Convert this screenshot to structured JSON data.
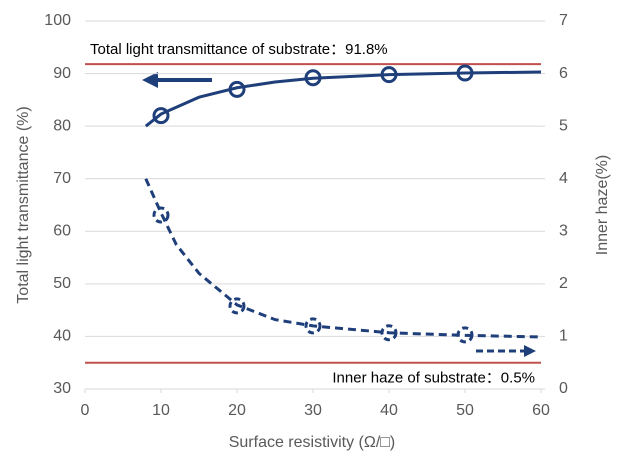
{
  "chart_data": {
    "type": "line",
    "xlabel": "Surface resistivity (Ω/□)",
    "ylabel": "Total light transmittance (%)",
    "y2label": "Inner haze(%)",
    "xlim": [
      0,
      60
    ],
    "xticks": [
      0,
      10,
      20,
      30,
      40,
      50,
      60
    ],
    "ylim": [
      30,
      100
    ],
    "yticks": [
      30,
      40,
      50,
      60,
      70,
      80,
      90,
      100
    ],
    "y2lim": [
      0,
      7
    ],
    "y2ticks": [
      0,
      1,
      2,
      3,
      4,
      5,
      6,
      7
    ],
    "grid": true,
    "series": [
      {
        "style": "markers",
        "linestyle": "solid",
        "color": "#1f3f7a",
        "x": [
          10,
          20,
          30,
          40,
          50
        ],
        "values": [
          82,
          87,
          89.2,
          89.8,
          90.1
        ]
      },
      {
        "style": "line",
        "linestyle": "solid",
        "color": "#1f3f7a",
        "x": [
          8,
          10,
          15,
          20,
          25,
          30,
          40,
          50,
          60
        ],
        "values": [
          80,
          82.3,
          85.5,
          87.3,
          88.4,
          89.1,
          89.8,
          90.1,
          90.3
        ]
      },
      {
        "style": "markers",
        "linestyle": "dashed",
        "axis": "y2",
        "color": "#1f3f7a",
        "x": [
          10,
          20,
          30,
          40,
          50
        ],
        "values": [
          3.31,
          1.58,
          1.2,
          1.07,
          1.03
        ]
      },
      {
        "style": "line",
        "linestyle": "dashed",
        "axis": "y2",
        "color": "#1f3f7a",
        "x": [
          8,
          10,
          12,
          15,
          20,
          25,
          30,
          40,
          50,
          60
        ],
        "values": [
          4.0,
          3.35,
          2.75,
          2.2,
          1.6,
          1.32,
          1.2,
          1.07,
          1.02,
          0.99
        ]
      }
    ],
    "reference_lines": [
      {
        "axis": "y",
        "value": 91.8,
        "color": "#c0504d",
        "label": "Total light transmittance of substrate：91.8%"
      },
      {
        "axis": "y2",
        "value": 0.5,
        "color": "#c0504d",
        "label": "Inner haze of substrate：0.5%"
      }
    ]
  }
}
